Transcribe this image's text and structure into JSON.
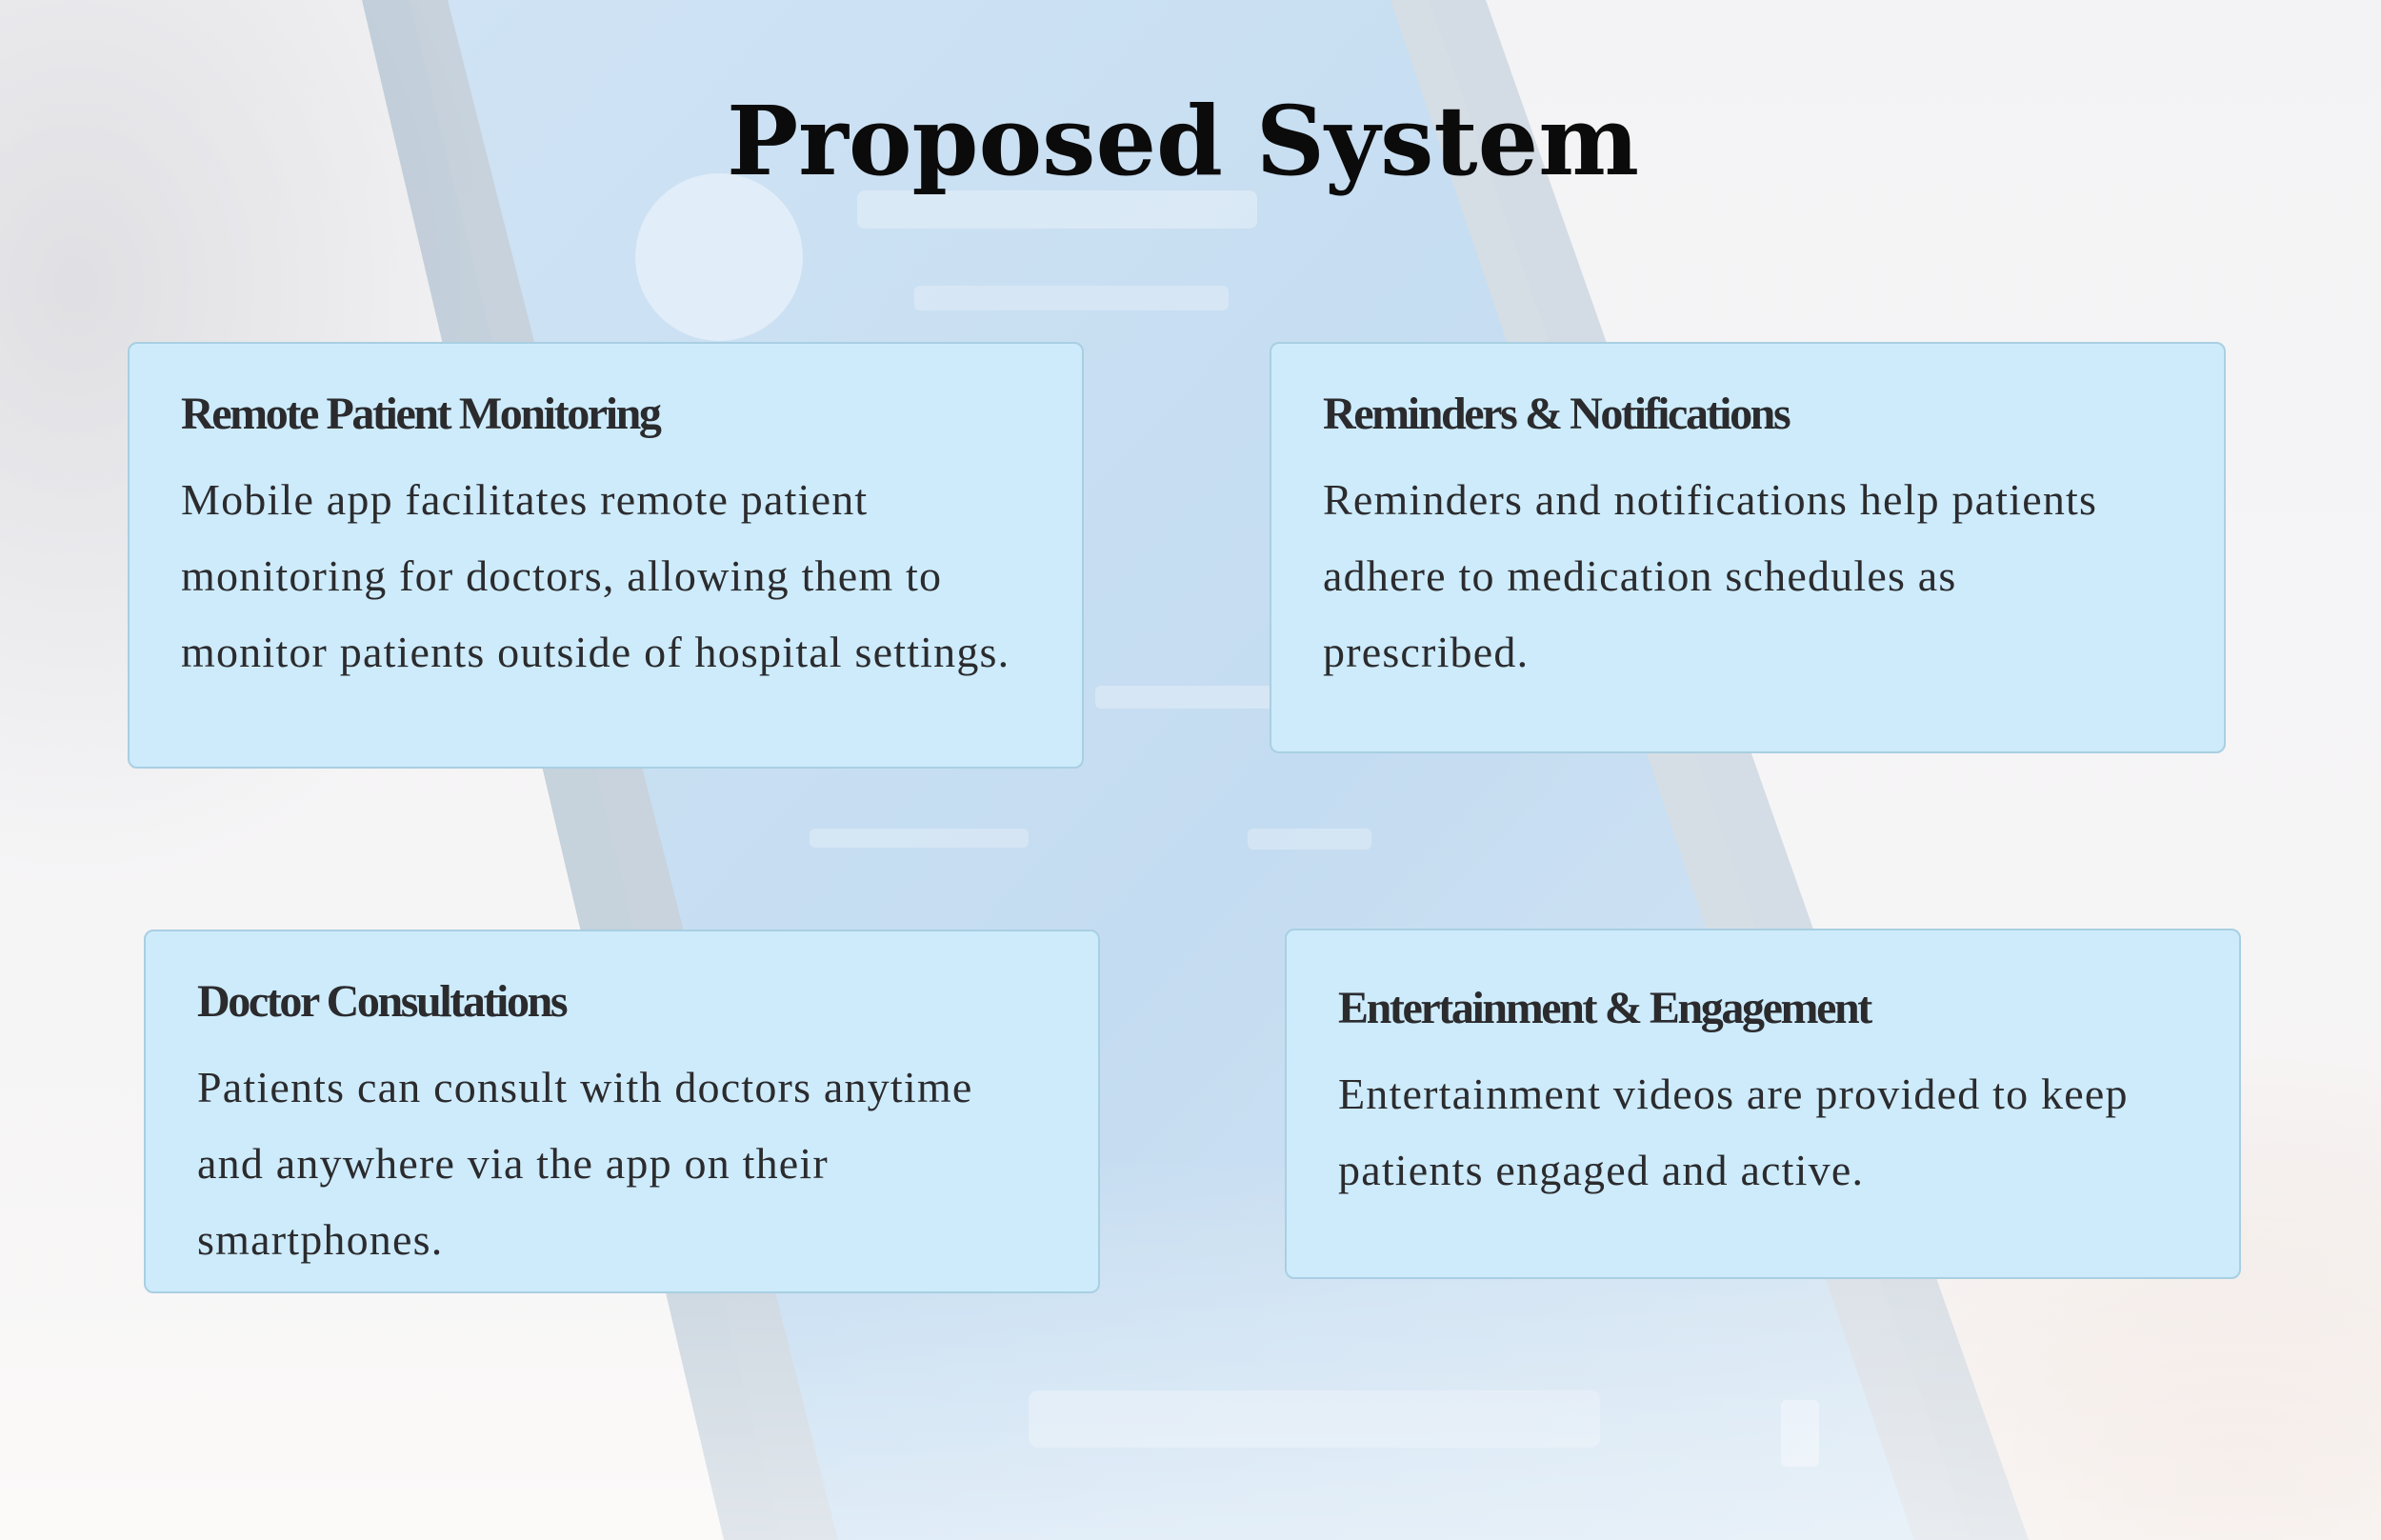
{
  "slide": {
    "title": "Proposed System",
    "cards": [
      {
        "heading": "Remote Patient Monitoring",
        "body": "Mobile app facilitates remote patient monitoring for doctors, allowing them to monitor patients outside of hospital settings."
      },
      {
        "heading": "Reminders & Notifications",
        "body": "Reminders and notifications help patients adhere to medication schedules as prescribed."
      },
      {
        "heading": "Doctor Consultations",
        "body": "Patients can consult with doctors anytime and anywhere via the app on their smartphones."
      },
      {
        "heading": "Entertainment & Engagement",
        "body": "Entertainment videos are provided to keep patients engaged and active."
      }
    ]
  },
  "colors": {
    "card_fill": "#cdebfb",
    "card_border": "#a9cfe2",
    "title_text": "#0b0b0b",
    "body_text": "#2b2b2e",
    "phone_background": "#b9d6ee"
  }
}
